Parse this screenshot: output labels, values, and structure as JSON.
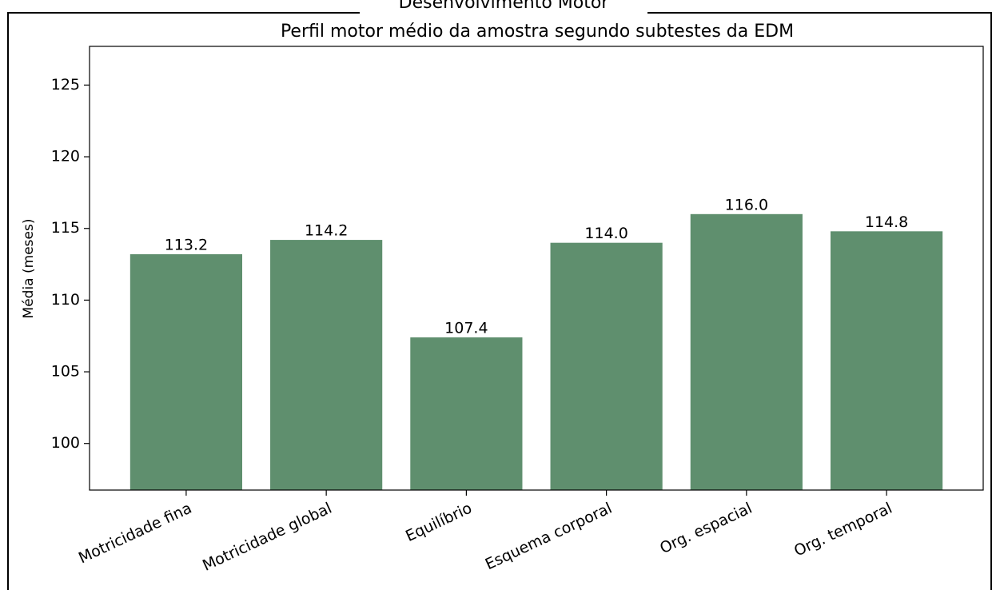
{
  "window_title": "Desenvolvimento Motor",
  "chart_data": {
    "type": "bar",
    "title": "Perfil motor médio da amostra segundo subtestes da EDM",
    "y_label": "Média (meses)",
    "categories": [
      "Motricidade fina",
      "Motricidade global",
      "Equilíbrio",
      "Esquema corporal",
      "Org. espacial",
      "Org. temporal"
    ],
    "values": [
      113.2,
      114.2,
      107.4,
      114.0,
      116.0,
      114.8
    ],
    "value_labels": [
      "113.2",
      "114.2",
      "107.4",
      "114.0",
      "116.0",
      "114.8"
    ],
    "color": "#5f8f6e",
    "ylim": [
      96.75,
      127.7
    ],
    "yticks": [
      100,
      105,
      110,
      115,
      120,
      125
    ],
    "grid": false
  }
}
